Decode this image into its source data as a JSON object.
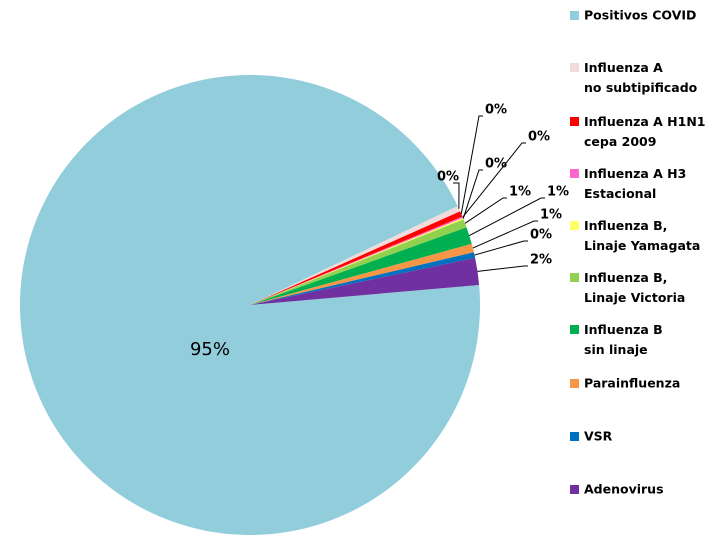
{
  "chart_data": {
    "type": "pie",
    "categories": [
      "Positivos COVID",
      "Influenza A\nno subtipificado",
      "Influenza A H1N1\ncepa 2009",
      " Influenza A H3\nEstacional",
      "Influenza B,\nLinaje Yamagata",
      "Influenza B,\nLinaje Victoria",
      "Influenza B\nsin linaje",
      "Parainfluenza",
      "VSR",
      "Adenovirus"
    ],
    "values": [
      94.6,
      0.4,
      0.4,
      0.1,
      0.1,
      0.6,
      1.2,
      0.6,
      0.4,
      1.9
    ],
    "value_labels": [
      "95%",
      "0%",
      "0%",
      "0%",
      "0%",
      "1%",
      "1%",
      "1%",
      "0%",
      "2%"
    ],
    "colors": [
      "#92cddc",
      "#f2dcdb",
      "#ff0000",
      "#ff66cc",
      "#ffff66",
      "#92d050",
      "#00b050",
      "#f79646",
      "#0070c0",
      "#7030a0"
    ],
    "legend": "right"
  }
}
